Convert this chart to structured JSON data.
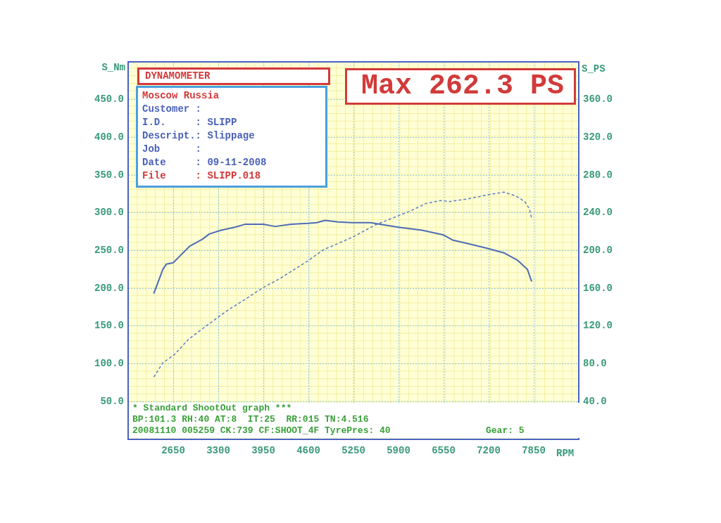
{
  "chart_data": {
    "type": "line",
    "xlabel": "RPM",
    "ylabel": "S_Nm",
    "y2label": "S_PS",
    "xlim": [
      2000,
      8500
    ],
    "xticks": [
      2650,
      3300,
      3950,
      4600,
      5250,
      5900,
      6550,
      7200,
      7850
    ],
    "ylim": [
      0,
      500
    ],
    "yticks": [
      {
        "value": 50,
        "label": "50.0"
      },
      {
        "value": 100,
        "label": "100.0"
      },
      {
        "value": 150,
        "label": "150.0"
      },
      {
        "value": 200,
        "label": "200.0"
      },
      {
        "value": 250,
        "label": "250.0"
      },
      {
        "value": 300,
        "label": "300.0"
      },
      {
        "value": 350,
        "label": "350.0"
      },
      {
        "value": 400,
        "label": "400.0"
      },
      {
        "value": 450,
        "label": "450.0"
      }
    ],
    "y2lim": [
      0,
      400
    ],
    "y2ticks": [
      {
        "value": 40,
        "label": "40.0"
      },
      {
        "value": 80,
        "label": "80.0"
      },
      {
        "value": 120,
        "label": "120.0"
      },
      {
        "value": 160,
        "label": "160.0"
      },
      {
        "value": 200,
        "label": "200.0"
      },
      {
        "value": 240,
        "label": "240.0"
      },
      {
        "value": 280,
        "label": "280.0"
      },
      {
        "value": 320,
        "label": "320.0"
      },
      {
        "value": 360,
        "label": "360.0"
      }
    ],
    "grid": true,
    "legend": false,
    "marker": "none",
    "series": [
      {
        "color": "#4d6cb5",
        "line_style": "solid",
        "x": [
          2370,
          2500,
          2550,
          2650,
          2890,
          3070,
          3170,
          3340,
          3540,
          3690,
          3950,
          4120,
          4350,
          4590,
          4720,
          4840,
          5030,
          5230,
          5500,
          5630,
          5900,
          6240,
          6540,
          6680,
          6910,
          7180,
          7420,
          7620,
          7760,
          7820
        ],
        "values": [
          193,
          225,
          232,
          234,
          256,
          265,
          272,
          277,
          281,
          285,
          285,
          282,
          285,
          286,
          287,
          290,
          288,
          287,
          287,
          285,
          281,
          277,
          271,
          264,
          259,
          253,
          247,
          237,
          225,
          209
        ]
      },
      {
        "color": "#5b7fc0",
        "line_style": "dashed",
        "axis": "y2",
        "x": [
          2370,
          2500,
          2670,
          2870,
          3140,
          3310,
          3440,
          3680,
          3950,
          4180,
          4590,
          4820,
          5230,
          5560,
          5900,
          6070,
          6300,
          6500,
          6640,
          6910,
          7180,
          7420,
          7590,
          7720,
          7790,
          7820
        ],
        "values": [
          66,
          81,
          90,
          106,
          121,
          130,
          137,
          148,
          161,
          170,
          189,
          201,
          214,
          227,
          237,
          242,
          250,
          253,
          252,
          255,
          259,
          262,
          258,
          252,
          244,
          234
        ]
      }
    ],
    "annotations": [
      "DYNAMOMETER",
      "Moscow Russia",
      "Customer :",
      "I.D.     : SLIPP",
      "Descript.: Slippage",
      "Job      :",
      "Date     : 09-11-2008",
      "File     : SLIPP.018",
      "Max 262.3 PS",
      "* Standard ShootOut graph ***",
      "BP:101.3 RH:40 AT:8  IT:25  RR:015 TN:4.516",
      "20081110 005259 CK:739 CF:SHOOT_4F TyrePres: 40",
      "Gear: 5"
    ]
  }
}
